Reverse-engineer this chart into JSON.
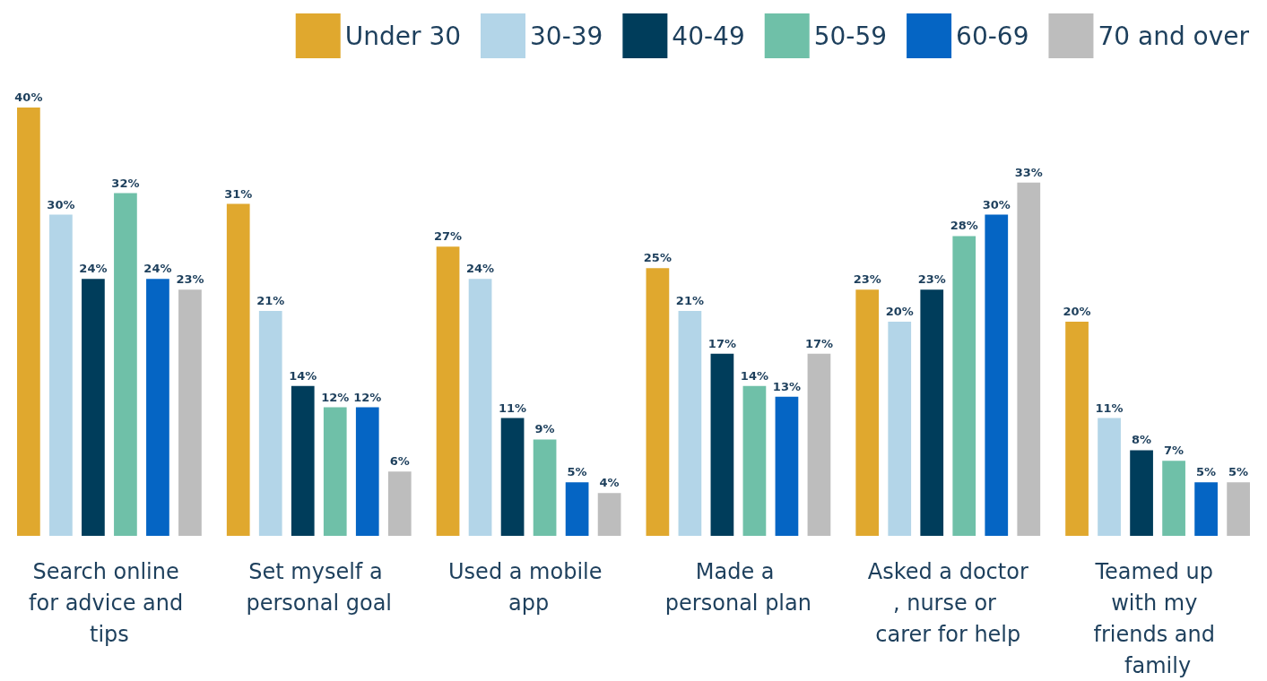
{
  "chart_data": {
    "type": "bar",
    "categories": [
      "Search online for advice and tips",
      "Set myself a personal goal",
      "Used a mobile app",
      "Made a personal plan",
      "Asked a doctor, nurse or carer for help",
      "Teamed up with my friends and family"
    ],
    "series": [
      {
        "name": "Under 30",
        "color": "#e0a82e",
        "values": [
          40,
          31,
          27,
          25,
          23,
          20
        ],
        "value_labels": [
          "40%",
          "31%",
          "27%",
          "25%",
          "23%",
          "20%"
        ]
      },
      {
        "name": "30-39",
        "color": "#b3d5e8",
        "values": [
          30,
          21,
          24,
          21,
          20,
          11
        ],
        "value_labels": [
          "30%",
          "21%",
          "24%",
          "21%",
          "20%",
          "11%"
        ]
      },
      {
        "name": "40-49",
        "color": "#003d5b",
        "values": [
          24,
          14,
          11,
          17,
          23,
          8
        ],
        "value_labels": [
          "24%",
          "14%",
          "11%",
          "17%",
          "23%",
          "8%"
        ]
      },
      {
        "name": "50-59",
        "color": "#6fc0a8",
        "values": [
          32,
          12,
          9,
          14,
          28,
          7
        ],
        "value_labels": [
          "32%",
          "12%",
          "9%",
          "14%",
          "28%",
          "7%"
        ]
      },
      {
        "name": "60-69",
        "color": "#0565c4",
        "values": [
          24,
          12,
          5,
          13,
          30,
          5
        ],
        "value_labels": [
          "24%",
          "12%",
          "5%",
          "13%",
          "30%",
          "5%"
        ]
      },
      {
        "name": "70 and over",
        "color": "#bdbdbd",
        "values": [
          23,
          6,
          4,
          17,
          33,
          5
        ],
        "value_labels": [
          "23%",
          "6%",
          "4%",
          "17%",
          "33%",
          "5%"
        ]
      }
    ],
    "legend": "top right"
  }
}
